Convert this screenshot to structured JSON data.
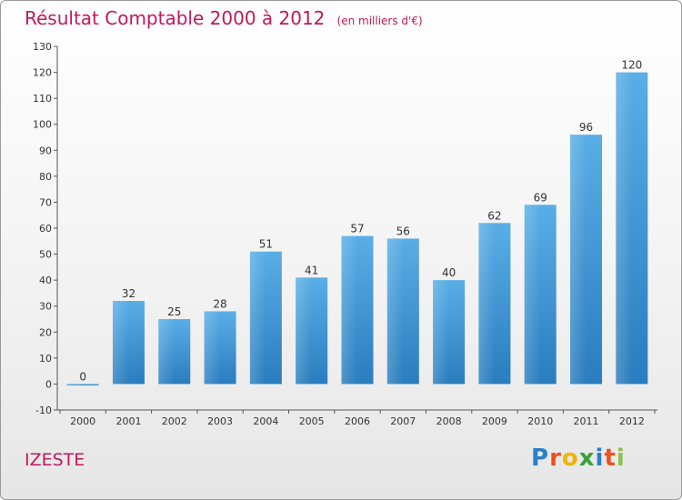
{
  "chart_data": {
    "type": "bar",
    "title": "Résultat Comptable 2000 à 2012",
    "unit_label": "(en milliers d'€)",
    "categories": [
      "2000",
      "2001",
      "2002",
      "2003",
      "2004",
      "2005",
      "2006",
      "2007",
      "2008",
      "2009",
      "2010",
      "2011",
      "2012"
    ],
    "values": [
      0,
      32,
      25,
      28,
      51,
      41,
      57,
      56,
      40,
      62,
      69,
      96,
      120
    ],
    "ylim": [
      -10,
      130
    ],
    "yticks": [
      -10,
      0,
      10,
      20,
      30,
      40,
      50,
      60,
      70,
      80,
      90,
      100,
      110,
      120,
      130
    ],
    "xlabel": "",
    "ylabel": "",
    "grid": false
  },
  "commune": "IZESTE",
  "logo": {
    "letters": [
      "P",
      "r",
      "o",
      "x",
      "i",
      "t",
      "i"
    ],
    "colors": [
      "#2a7fc9",
      "#e8531f",
      "#f0b400",
      "#3aa13a",
      "#2a7fc9",
      "#e8531f",
      "#8bc34a"
    ]
  },
  "colors": {
    "title": "#c2185b",
    "bar_top": "#5aaee6",
    "bar_bottom": "#2a7dbe",
    "axis": "#555555"
  }
}
